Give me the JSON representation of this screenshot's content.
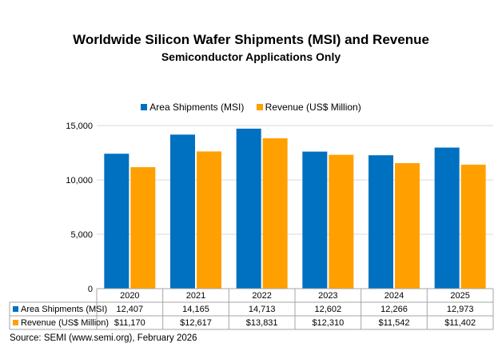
{
  "chart_data": {
    "type": "bar",
    "title": "Worldwide Silicon Wafer Shipments (MSI) and Revenue",
    "subtitle": "Semiconductor Applications Only",
    "categories": [
      "2020",
      "2021",
      "2022",
      "2023",
      "2024",
      "2025"
    ],
    "series": [
      {
        "name": "Area Shipments (MSI)",
        "color": "#0070C0",
        "values": [
          12407,
          14165,
          14713,
          12602,
          12266,
          12973
        ],
        "table_labels": [
          "12,407",
          "14,165",
          "14,713",
          "12,602",
          "12,266",
          "12,973"
        ]
      },
      {
        "name": "Revenue (US$ Million)",
        "color": "#FFA000",
        "values": [
          11170,
          12617,
          13831,
          12310,
          11542,
          11402
        ],
        "table_labels": [
          "$11,170",
          "$12,617",
          "$13,831",
          "$12,310",
          "$11,542",
          "$11,402"
        ]
      }
    ],
    "yticks": [
      0,
      5000,
      10000,
      15000
    ],
    "ytick_labels": [
      "0",
      "5,000",
      "10,000",
      "15,000"
    ],
    "ylim": [
      0,
      15000
    ],
    "grid": true,
    "legend_position": "top",
    "data_table": true
  },
  "source": "Source: SEMI (www.semi.org), February 2026"
}
